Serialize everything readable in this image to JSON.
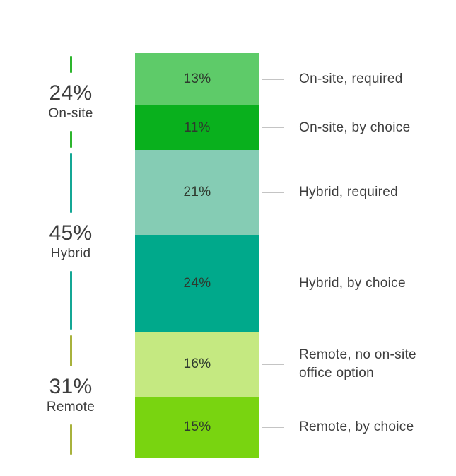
{
  "chart_data": {
    "type": "bar",
    "stacked": true,
    "orientation": "vertical",
    "unit": "%",
    "title": "",
    "total": 100,
    "legend_position": "right",
    "grid": false,
    "segments": [
      {
        "legend_label": "On-site, required",
        "value": 13,
        "value_label": "13%",
        "color": "#5ecb69"
      },
      {
        "legend_label": "On-site, by choice",
        "value": 11,
        "value_label": "11%",
        "color": "#09b01d"
      },
      {
        "legend_label": "Hybrid, required",
        "value": 21,
        "value_label": "21%",
        "color": "#85ccb4"
      },
      {
        "legend_label": "Hybrid, by choice",
        "value": 24,
        "value_label": "24%",
        "color": "#00a98b"
      },
      {
        "legend_label": "Remote, no on-site office option",
        "value": 16,
        "value_label": "16%",
        "color": "#c5e981"
      },
      {
        "legend_label": "Remote, by choice",
        "value": 15,
        "value_label": "15%",
        "color": "#79d410"
      }
    ],
    "groups": [
      {
        "name": "On-site",
        "total": 24,
        "pct_label": "24%",
        "line_color": "#2db52d"
      },
      {
        "name": "Hybrid",
        "total": 45,
        "pct_label": "45%",
        "line_color": "#14a795"
      },
      {
        "name": "Remote",
        "total": 31,
        "pct_label": "31%",
        "line_color": "#a8b23c"
      }
    ]
  },
  "colors": {
    "text": "#3d3d3d",
    "leader_line": "#c4c4c4",
    "background": "#ffffff"
  }
}
